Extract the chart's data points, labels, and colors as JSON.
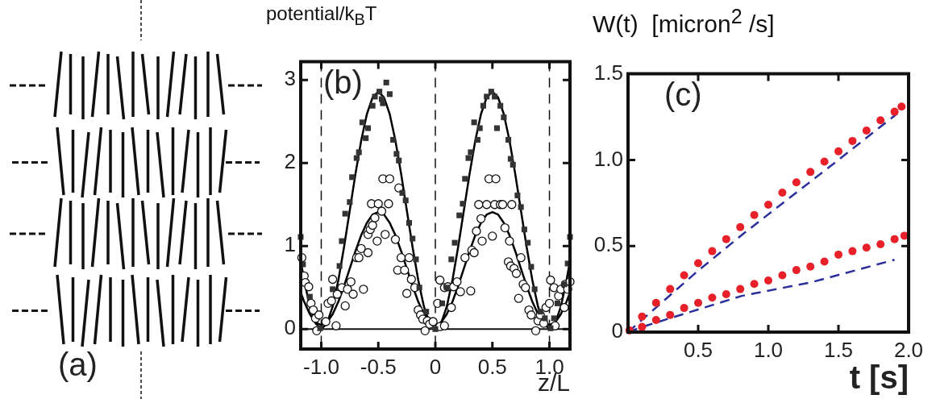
{
  "chart_data": [
    {
      "type": "other",
      "annotations": [
        "(a)"
      ]
    },
    {
      "type": "scatter",
      "ylabel": "potential/k$_{B}$T",
      "xlabel": "z/L",
      "annotations": [
        "(b)"
      ],
      "xlim": [
        -1.18,
        1.18
      ],
      "ylim": [
        -0.24,
        3.22
      ],
      "xticks": [
        {
          "value": -1,
          "label": "-1.0"
        },
        -0.5,
        0,
        0.5,
        {
          "value": 1,
          "label": "1.0"
        }
      ],
      "yticks": [
        0,
        1,
        2,
        3
      ],
      "ref_lines": [
        {
          "axis": "x",
          "value": -1,
          "line_style": "dashed"
        },
        {
          "axis": "x",
          "value": 0,
          "line_style": "dashed"
        },
        {
          "axis": "x",
          "value": 1,
          "line_style": "dashed"
        },
        {
          "axis": "y",
          "value": 0,
          "line_style": "solid"
        }
      ],
      "series": [
        {
          "type": "line",
          "color": "#000000",
          "marker": "none",
          "line_style": "solid",
          "x": [
            -1.18,
            -1.15,
            -1.1,
            -1.05,
            -1,
            -0.95,
            -0.9,
            -0.85,
            -0.8,
            -0.75,
            -0.7,
            -0.65,
            -0.6,
            -0.55,
            -0.5,
            -0.45,
            -0.4,
            -0.35,
            -0.3,
            -0.25,
            -0.2,
            -0.15,
            -0.1,
            -0.05,
            0,
            0.05,
            0.1,
            0.15,
            0.2,
            0.25,
            0.3,
            0.35,
            0.4,
            0.45,
            0.5,
            0.55,
            0.6,
            0.65,
            0.7,
            0.75,
            0.8,
            0.85,
            0.9,
            0.95,
            1,
            1.05,
            1.1,
            1.15,
            1.18
          ],
          "values": [
            0.82,
            0.59,
            0.27,
            0.07,
            0,
            0.07,
            0.27,
            0.59,
            0.99,
            1.43,
            1.87,
            2.27,
            2.59,
            2.79,
            2.86,
            2.79,
            2.59,
            2.27,
            1.87,
            1.43,
            0.99,
            0.59,
            0.27,
            0.07,
            0,
            0.07,
            0.27,
            0.59,
            0.99,
            1.43,
            1.87,
            2.27,
            2.59,
            2.79,
            2.86,
            2.79,
            2.59,
            2.27,
            1.87,
            1.43,
            0.99,
            0.59,
            0.27,
            0.07,
            0,
            0.07,
            0.27,
            0.59,
            0.82
          ]
        },
        {
          "type": "line",
          "color": "#000000",
          "marker": "none",
          "line_style": "solid",
          "x": [
            -1.18,
            -1.15,
            -1.1,
            -1.05,
            -1,
            -0.95,
            -0.9,
            -0.85,
            -0.8,
            -0.75,
            -0.7,
            -0.65,
            -0.6,
            -0.55,
            -0.5,
            -0.45,
            -0.4,
            -0.35,
            -0.3,
            -0.25,
            -0.2,
            -0.15,
            -0.1,
            -0.05,
            0,
            0.05,
            0.1,
            0.15,
            0.2,
            0.25,
            0.3,
            0.35,
            0.4,
            0.45,
            0.5,
            0.55,
            0.6,
            0.65,
            0.7,
            0.75,
            0.8,
            0.85,
            0.9,
            0.95,
            1,
            1.05,
            1.1,
            1.15,
            1.18
          ],
          "values": [
            0.44,
            0.33,
            0.18,
            0.08,
            0.05,
            0.08,
            0.18,
            0.33,
            0.52,
            0.73,
            0.94,
            1.13,
            1.28,
            1.38,
            1.41,
            1.38,
            1.28,
            1.13,
            0.94,
            0.73,
            0.52,
            0.33,
            0.18,
            0.08,
            0.05,
            0.08,
            0.18,
            0.33,
            0.52,
            0.73,
            0.94,
            1.13,
            1.28,
            1.38,
            1.41,
            1.38,
            1.28,
            1.13,
            0.94,
            0.73,
            0.52,
            0.33,
            0.18,
            0.08,
            0.05,
            0.08,
            0.18,
            0.33,
            0.44
          ]
        },
        {
          "type": "scatter",
          "color": "#333333",
          "marker": "square",
          "x": [
            -1.18,
            -1.16,
            -1.1,
            -1.01,
            -0.9,
            -0.84,
            -0.82,
            -0.79,
            -0.75,
            -0.73,
            -0.69,
            -0.67,
            -0.64,
            -0.61,
            -0.59,
            -0.55,
            -0.53,
            -0.49,
            -0.47,
            -0.46,
            -0.43,
            -0.4,
            -0.37,
            -0.34,
            -0.32,
            -0.29,
            -0.26,
            -0.23,
            -0.2,
            -0.17,
            -0.14,
            -0.08,
            0,
            0.06,
            0.1,
            0.14,
            0.17,
            0.21,
            0.24,
            0.26,
            0.29,
            0.31,
            0.34,
            0.37,
            0.39,
            0.42,
            0.45,
            0.49,
            0.52,
            0.54,
            0.57,
            0.6,
            0.64,
            0.66,
            0.68,
            0.72,
            0.75,
            0.78,
            0.81,
            0.84,
            0.87,
            0.92,
            0.96,
            1.01,
            1.04,
            1.07,
            1.13,
            1.16,
            1.18
          ],
          "values": [
            1.11,
            0.78,
            0.39,
            0.01,
            0.48,
            0.76,
            1.06,
            1.39,
            1.53,
            1.83,
            2.06,
            2.13,
            2.49,
            2.3,
            2.42,
            2.69,
            2.8,
            2.86,
            2.77,
            2.72,
            2.97,
            2.83,
            2.28,
            2.11,
            2.03,
            1.64,
            1.55,
            1.28,
            1.09,
            0.84,
            0.5,
            0.21,
            0,
            0.31,
            0.5,
            0.84,
            1.04,
            1.37,
            1.51,
            1.81,
            2.06,
            2.13,
            2.49,
            2.28,
            2.42,
            2.69,
            2.8,
            2.86,
            2.8,
            2.42,
            2.69,
            2.55,
            2.28,
            2.05,
            1.98,
            1.61,
            1.47,
            1.2,
            1.04,
            0.75,
            0.48,
            0.21,
            0.13,
            0.01,
            0.13,
            0.31,
            0.54,
            0.79,
            1.11
          ]
        },
        {
          "type": "scatter",
          "color": "#ffffff",
          "marker": "circle",
          "x": [
            -1.17,
            -1.15,
            -1.14,
            -1.11,
            -1.09,
            -1.07,
            -1.05,
            -1.04,
            -1.02,
            -0.96,
            -0.94,
            -0.91,
            -0.9,
            -0.87,
            -0.86,
            -0.82,
            -0.79,
            -0.77,
            -0.74,
            -0.72,
            -0.69,
            -0.67,
            -0.65,
            -0.63,
            -0.59,
            -0.59,
            -0.57,
            -0.56,
            -0.55,
            -0.53,
            -0.51,
            -0.5,
            -0.47,
            -0.46,
            -0.44,
            -0.41,
            -0.4,
            -0.35,
            -0.33,
            -0.32,
            -0.3,
            -0.27,
            -0.25,
            -0.23,
            -0.21,
            -0.18,
            -0.15,
            -0.13,
            -0.11,
            -0.09,
            -0.07,
            -0.05,
            -0.02,
            0.02,
            0.04,
            0.04,
            0.08,
            0.08,
            0.11,
            0.14,
            0.16,
            0.19,
            0.22,
            0.26,
            0.31,
            0.32,
            0.34,
            0.36,
            0.38,
            0.4,
            0.41,
            0.45,
            0.47,
            0.5,
            0.52,
            0.53,
            0.57,
            0.59,
            0.61,
            0.64,
            0.65,
            0.66,
            0.67,
            0.69,
            0.71,
            0.73,
            0.75,
            0.77,
            0.79,
            0.82,
            0.84,
            0.88,
            0.9,
            0.92,
            0.95,
            0.97,
            1,
            1.01,
            1.04,
            1.05,
            1.08,
            1.1,
            1.13,
            1.14,
            1.16,
            1.18
          ],
          "values": [
            0.86,
            0.64,
            0.56,
            0.51,
            0.31,
            0.23,
            0.13,
            -0.02,
            0.17,
            0.09,
            0.31,
            0.34,
            0.6,
            0.04,
            0.42,
            0.5,
            0.28,
            0.48,
            0.57,
            0.42,
            0.86,
            0.86,
            0.97,
            0.48,
            0.92,
            1.14,
            1.2,
            1.51,
            1.25,
            1.34,
            1.06,
            1.51,
            1.42,
            1.81,
            1.14,
            1.51,
            1.81,
            1.08,
            0.71,
            1.7,
            0.86,
            0.71,
            0.43,
            0.86,
            0.6,
            0.5,
            0.23,
            0.17,
            0.12,
            -0.02,
            0.1,
            0.06,
            0.09,
            0.31,
            0.59,
            0.03,
            0.5,
            0.04,
            0.51,
            0.26,
            0.51,
            0.57,
            0.45,
            0.86,
            0.46,
            0.95,
            0.92,
            1.18,
            1.5,
            1.33,
            1.06,
            1.5,
            1.81,
            1.12,
            1.5,
            1.81,
            1.5,
            1.5,
            1.22,
            0.81,
            1.06,
            0.76,
            1.5,
            0.73,
            0.67,
            0.37,
            0.86,
            0.54,
            0.5,
            0.23,
            0.17,
            -0.02,
            0.1,
            0.17,
            0.07,
            0.26,
            0.31,
            0.59,
            0.5,
            0.04,
            0.4,
            0.48,
            0.26,
            0.54,
            0.48,
            0.57
          ]
        }
      ]
    },
    {
      "type": "scatter",
      "ylabel": "W(t)  [micron$^{2}$ /s]",
      "xlabel": "t [s]",
      "annotations": [
        "(c)"
      ],
      "xlim": [
        0,
        2
      ],
      "ylim": [
        0,
        1.5
      ],
      "xticks": [
        {
          "value": 0,
          "label": null
        },
        0.5,
        {
          "value": 1,
          "label": "1.0"
        },
        1.5,
        {
          "value": 2,
          "label": "2.0"
        }
      ],
      "yticks": [
        0,
        0.5,
        {
          "value": 1,
          "label": "1.0"
        },
        1.5
      ],
      "series": [
        {
          "type": "line",
          "color": "#2b2f9b",
          "marker": "none",
          "line_style": "dashed",
          "x": [
            0,
            0.49,
            0.82,
            1.5,
            1.92
          ],
          "values": [
            0,
            0.35,
            0.57,
            1.0,
            1.27
          ]
        },
        {
          "type": "line",
          "color": "#2b2f9b",
          "marker": "none",
          "line_style": "dashed",
          "x": [
            0,
            0.14,
            0.81,
            1.31,
            1.9
          ],
          "values": [
            0,
            0.04,
            0.21,
            0.29,
            0.42
          ]
        },
        {
          "type": "scatter",
          "color": "#e8202a",
          "marker": "circle",
          "x": [
            0.01,
            0.1,
            0.2,
            0.3,
            0.4,
            0.5,
            0.6,
            0.7,
            0.8,
            0.9,
            1,
            1.1,
            1.2,
            1.3,
            1.4,
            1.5,
            1.6,
            1.7,
            1.8,
            1.9,
            1.95
          ],
          "values": [
            0.01,
            0.09,
            0.17,
            0.25,
            0.33,
            0.4,
            0.47,
            0.54,
            0.61,
            0.68,
            0.74,
            0.81,
            0.87,
            0.93,
            0.99,
            1.05,
            1.11,
            1.17,
            1.23,
            1.28,
            1.31
          ]
        },
        {
          "type": "scatter",
          "color": "#e8202a",
          "marker": "circle",
          "x": [
            0.1,
            0.2,
            0.3,
            0.4,
            0.5,
            0.6,
            0.7,
            0.8,
            0.9,
            1,
            1.1,
            1.2,
            1.3,
            1.4,
            1.5,
            1.6,
            1.7,
            1.8,
            1.9,
            1.97
          ],
          "values": [
            0.03,
            0.07,
            0.1,
            0.14,
            0.17,
            0.2,
            0.22,
            0.25,
            0.28,
            0.3,
            0.33,
            0.36,
            0.38,
            0.41,
            0.45,
            0.47,
            0.49,
            0.51,
            0.54,
            0.56
          ]
        }
      ]
    }
  ]
}
